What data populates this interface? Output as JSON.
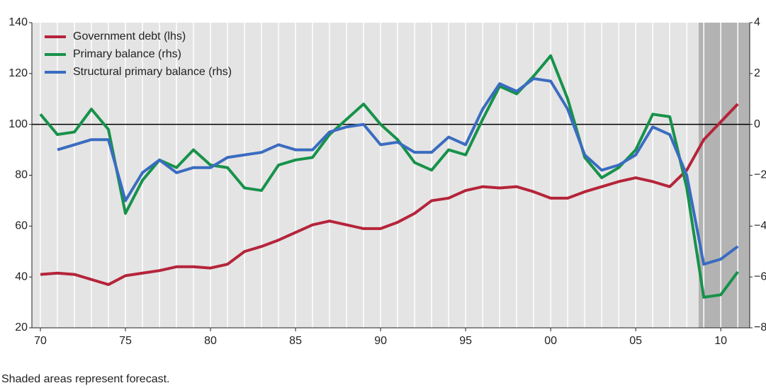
{
  "chart_data": {
    "type": "line",
    "x": [
      1970,
      1971,
      1972,
      1973,
      1974,
      1975,
      1976,
      1977,
      1978,
      1979,
      1980,
      1981,
      1982,
      1983,
      1984,
      1985,
      1986,
      1987,
      1988,
      1989,
      1990,
      1991,
      1992,
      1993,
      1994,
      1995,
      1996,
      1997,
      1998,
      1999,
      2000,
      2001,
      2002,
      2003,
      2004,
      2005,
      2006,
      2007,
      2008,
      2009,
      2010,
      2011
    ],
    "series": [
      {
        "name": "Government debt (lhs)",
        "color": "#b5243a",
        "axis": "y",
        "values": [
          41,
          41.5,
          41,
          39,
          37,
          40.5,
          41.5,
          42.5,
          44,
          44,
          43.5,
          45,
          50,
          52,
          54.5,
          57.5,
          60.5,
          62,
          60.5,
          59,
          59,
          61.5,
          65,
          70,
          71,
          74,
          75.5,
          75,
          75.5,
          73.5,
          71,
          71,
          73.5,
          75.5,
          77.5,
          79,
          77.5,
          75.5,
          82,
          94,
          101,
          108
        ]
      },
      {
        "name": "Primary balance (rhs)",
        "color": "#17924a",
        "axis": "y2",
        "values": [
          0.4,
          -0.4,
          -0.3,
          0.6,
          -0.2,
          -3.5,
          -2.2,
          -1.4,
          -1.7,
          -1.0,
          -1.6,
          -1.7,
          -2.5,
          -2.6,
          -1.6,
          -1.4,
          -1.3,
          -0.4,
          0.2,
          0.8,
          0.0,
          -0.6,
          -1.5,
          -1.8,
          -1.0,
          -1.2,
          0.2,
          1.5,
          1.2,
          1.9,
          2.7,
          1.0,
          -1.3,
          -2.1,
          -1.7,
          -1.0,
          0.4,
          0.3,
          -2.5,
          -6.8,
          -6.7,
          -5.8
        ]
      },
      {
        "name": "Structural primary balance (rhs)",
        "color": "#3a6cc0",
        "axis": "y2",
        "values": [
          null,
          -1.0,
          -0.8,
          -0.6,
          -0.6,
          -3.0,
          -1.9,
          -1.4,
          -1.9,
          -1.7,
          -1.7,
          -1.3,
          -1.2,
          -1.1,
          -0.8,
          -1.0,
          -1.0,
          -0.3,
          -0.1,
          0.0,
          -0.8,
          -0.7,
          -1.1,
          -1.1,
          -0.5,
          -0.8,
          0.6,
          1.6,
          1.3,
          1.8,
          1.7,
          0.6,
          -1.2,
          -1.8,
          -1.6,
          -1.2,
          -0.1,
          -0.4,
          -2.0,
          -5.5,
          -5.3,
          -4.8
        ]
      }
    ],
    "xlim": [
      1969.5,
      2011.7
    ],
    "xticks": [
      {
        "value": 1970,
        "label": "70"
      },
      {
        "value": 1975,
        "label": "75"
      },
      {
        "value": 1980,
        "label": "80"
      },
      {
        "value": 1985,
        "label": "85"
      },
      {
        "value": 1990,
        "label": "90"
      },
      {
        "value": 1995,
        "label": "95"
      },
      {
        "value": 2000,
        "label": "00"
      },
      {
        "value": 2005,
        "label": "05"
      },
      {
        "value": 2010,
        "label": "10"
      }
    ],
    "ylim": [
      20,
      140
    ],
    "yticks": [
      20,
      40,
      60,
      80,
      100,
      120,
      140
    ],
    "y2lim": [
      -8,
      4
    ],
    "y2ticks": [
      {
        "value": -8,
        "label": "−8"
      },
      {
        "value": -6,
        "label": "−6"
      },
      {
        "value": -4,
        "label": "−4"
      },
      {
        "value": -2,
        "label": "−2"
      },
      0,
      2,
      4
    ],
    "shaded_range": [
      2008.7,
      2011.7
    ],
    "legend": "upper left",
    "note": "Shaded areas represent forecast."
  }
}
